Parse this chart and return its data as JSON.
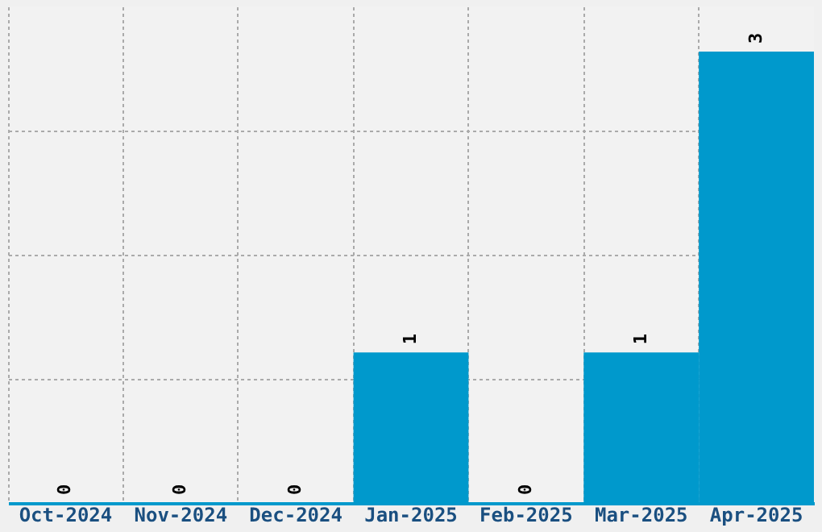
{
  "chart_data": {
    "type": "bar",
    "categories": [
      "Oct-2024",
      "Nov-2024",
      "Dec-2024",
      "Jan-2025",
      "Feb-2025",
      "Mar-2025",
      "Apr-2025"
    ],
    "values": [
      0,
      0,
      0,
      1,
      0,
      1,
      3
    ],
    "color": "#0099cc",
    "ylim": [
      0,
      3.3
    ],
    "yticks": [
      {
        "value": 0.82,
        "label": null
      },
      {
        "value": 1.65,
        "label": null
      },
      {
        "value": 2.47,
        "label": null
      }
    ],
    "grid": true,
    "tick_labels": "x",
    "data_labels": true
  }
}
